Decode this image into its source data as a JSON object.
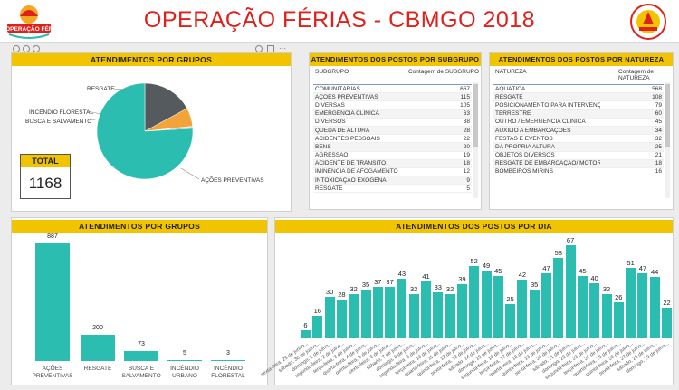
{
  "header": {
    "title": "OPERAÇÃO FÉRIAS - CBMGO 2018",
    "logo_left_text": "44ª OPERAÇÃO FÉRIAS"
  },
  "colors": {
    "accent": "#2bbdb0",
    "title_red": "#e0201b",
    "header_yellow": "#f2c400"
  },
  "pie": {
    "title": "ATENDIMENTOS POR GRUPOS",
    "labels": {
      "resgate": "RESGATE",
      "incendio": "INCÊNDIO FLORESTAL",
      "busca": "BUSCA E SALVAMENTO",
      "acoes": "AÇÕES PREVENTIVAS"
    },
    "total_label": "TOTAL",
    "total_value": "1168"
  },
  "chart_data": [
    {
      "type": "pie",
      "title": "ATENDIMENTOS POR GRUPOS",
      "categories": [
        "AÇÕES PREVENTIVAS",
        "RESGATE",
        "BUSCA E SALVAMENTO",
        "INCÊNDIO URBANO",
        "INCÊNDIO FLORESTAL"
      ],
      "values": [
        887,
        200,
        73,
        5,
        3
      ],
      "colors": [
        "#2bbdb0",
        "#555a5e",
        "#f2a33a",
        "#7f7f7f",
        "#aaaaaa"
      ]
    },
    {
      "type": "bar",
      "title": "ATENDIMENTOS POR GRUPOS",
      "categories": [
        "AÇÕES PREVENTIVAS",
        "RESGATE",
        "BUSCA E SALVAMENTO",
        "INCÊNDIO URBANO",
        "INCÊNDIO FLORESTAL"
      ],
      "values": [
        887,
        200,
        73,
        5,
        3
      ]
    },
    {
      "type": "bar",
      "title": "ATENDIMENTOS DOS POSTOS POR DIA",
      "categories": [
        "sexta-feira, 29 de junho...",
        "sábado, 30 de junho...",
        "domingo, 1 de julho...",
        "segunda-feira, 2 de julho...",
        "terça-feira, 3 de julho...",
        "quarta-feira, 4 de julho...",
        "quinta-feira, 5 de julho...",
        "sexta-feira, 6 de julho...",
        "sábado, 7 de julho...",
        "domingo, 8 de julho...",
        "segunda-feira, 9 de julho...",
        "terça-feira, 10 de julho...",
        "quarta-feira, 11 de julho...",
        "quinta-feira, 12 de julho...",
        "sexta-feira, 13 de julho...",
        "sábado, 14 de julho...",
        "domingo, 15 de julho...",
        "segunda-feira, 16 de julho...",
        "terça-feira, 17 de julho...",
        "quarta-feira, 18 de julho...",
        "quinta-feira, 19 de julho...",
        "sexta-feira, 20 de julho...",
        "sábado, 21 de julho...",
        "domingo, 22 de julho...",
        "segunda-feira, 23 de julho...",
        "terça-feira, 24 de julho...",
        "quarta-feira, 25 de julho...",
        "quinta-feira, 26 de julho...",
        "sexta-feira, 27 de julho...",
        "sábado, 28 de julho...",
        "domingo, 29 de julho..."
      ],
      "values": [
        6,
        16,
        30,
        28,
        32,
        35,
        37,
        37,
        43,
        32,
        41,
        33,
        32,
        39,
        52,
        49,
        45,
        25,
        42,
        35,
        47,
        58,
        67,
        45,
        40,
        32,
        26,
        51,
        47,
        44,
        22
      ]
    }
  ],
  "table_subgrupo": {
    "title": "ATENDIMENTOS DOS POSTOS POR SUBGRUPO",
    "col1": "SUBGRUPO",
    "col2": "Contagem de SUBGRUPO",
    "rows": [
      [
        "COMUNITÁRIAS",
        "667"
      ],
      [
        "AÇÕES PREVENTIVAS",
        "115"
      ],
      [
        "DIVERSAS",
        "105"
      ],
      [
        "EMERGÊNCIA CLÍNICA",
        "63"
      ],
      [
        "DIVERSOS",
        "38"
      ],
      [
        "QUEDA DE ALTURA",
        "28"
      ],
      [
        "ACIDENTES PESSOAIS",
        "22"
      ],
      [
        "BENS",
        "20"
      ],
      [
        "AGRESSÃO",
        "19"
      ],
      [
        "ACIDENTE DE TRÂNSITO",
        "18"
      ],
      [
        "IMINÊNCIA DE AFOGAMENTO",
        "12"
      ],
      [
        "INTOXICAÇÃO EXÓGENA",
        "9"
      ],
      [
        "RESGATE",
        "5"
      ]
    ],
    "total_label": "Total",
    "total_value": "1168"
  },
  "table_natureza": {
    "title": "ATENDIMENTOS DOS POSTOS POR NATUREZA",
    "col1": "NATUREZA",
    "col2": "Contagem de NATUREZA",
    "rows": [
      [
        "AQUÁTICA",
        "568"
      ],
      [
        "RESGATE",
        "108"
      ],
      [
        "POSICIONAMENTO PARA INTERVENÇÃO",
        "79"
      ],
      [
        "TERRESTRE",
        "60"
      ],
      [
        "OUTRO / EMERGÊNCIA CLÍNICA",
        "45"
      ],
      [
        "AUXÍLIO A EMBARCAÇÕES",
        "34"
      ],
      [
        "FESTAS E EVENTOS",
        "32"
      ],
      [
        "DA PRÓPRIA ALTURA",
        "25"
      ],
      [
        "OBJETOS DIVERSOS",
        "21"
      ],
      [
        "RESGATE DE EMBARCAÇÃO/ MOTOR DE POPA",
        "18"
      ],
      [
        "BOMBEIROS MIRINS",
        "16"
      ]
    ],
    "total_label": "Total",
    "total_value": "1168"
  },
  "bars": {
    "title": "ATENDIMENTOS POR GRUPOS",
    "values": [
      "887",
      "200",
      "73",
      "5",
      "3"
    ],
    "cats": [
      "AÇÕES PREVENTIVAS",
      "RESGATE",
      "BUSCA E SALVAMENTO",
      "INCÊNDIO URBANO",
      "INCÊNDIO FLORESTAL"
    ]
  },
  "day": {
    "title": "ATENDIMENTOS DOS POSTOS POR DIA"
  }
}
